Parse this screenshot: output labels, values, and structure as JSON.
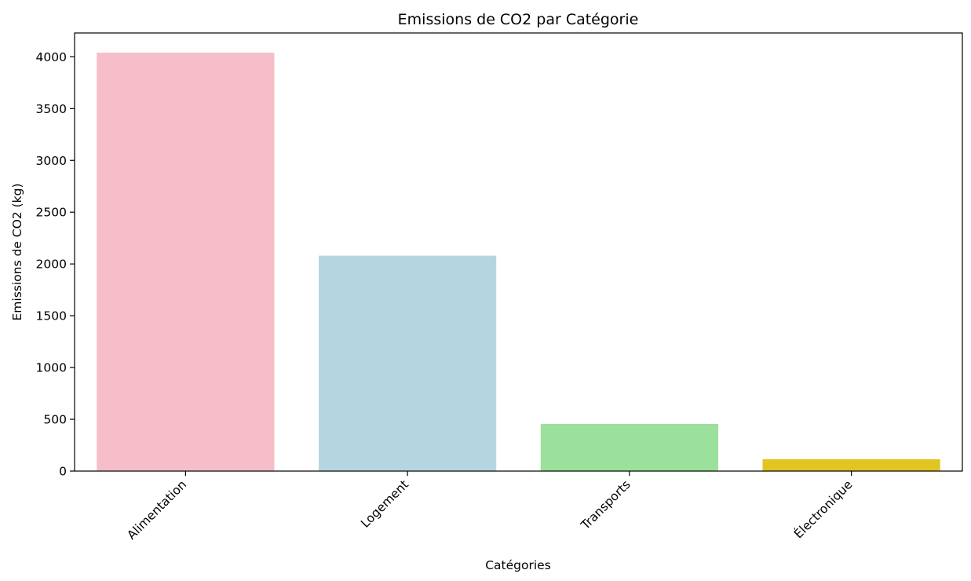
{
  "chart_data": {
    "type": "bar",
    "title": "Emissions de CO2 par Catégorie",
    "xlabel": "Catégories",
    "ylabel": "Emissions de CO2 (kg)",
    "categories": [
      "Alimentation",
      "Logement",
      "Transports",
      "Électronique"
    ],
    "values": [
      4040,
      2080,
      455,
      115
    ],
    "colors": [
      "#f6bec8",
      "#b5d6e0",
      "#9be09b",
      "#e2c423"
    ],
    "ylim": [
      0,
      4230
    ],
    "yticks": [
      0,
      500,
      1000,
      1500,
      2000,
      2500,
      3000,
      3500,
      4000
    ],
    "grid": false
  }
}
